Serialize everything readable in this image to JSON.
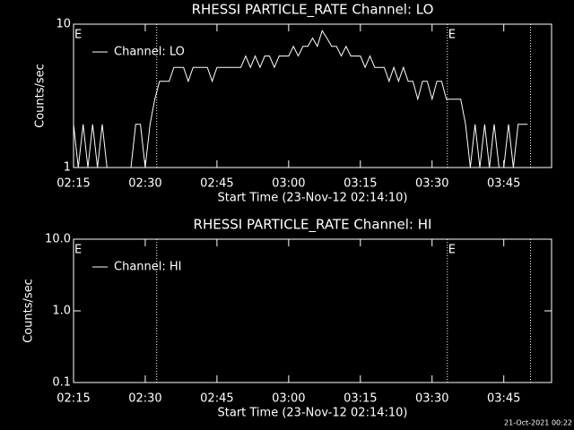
{
  "chart_data": [
    {
      "type": "line",
      "title": "RHESSI PARTICLE_RATE Channel: LO",
      "xlabel": "Start Time (23-Nov-12 02:14:10)",
      "ylabel": "Counts/sec",
      "xlim": [
        0,
        100
      ],
      "xticks": [
        {
          "value": 0,
          "label": "02:15"
        },
        {
          "value": 15,
          "label": "02:30"
        },
        {
          "value": 30,
          "label": "02:45"
        },
        {
          "value": 45,
          "label": "03:00"
        },
        {
          "value": 60,
          "label": "03:15"
        },
        {
          "value": 75,
          "label": "03:30"
        },
        {
          "value": 90,
          "label": "03:45"
        }
      ],
      "ylim": [
        1,
        10
      ],
      "yticks": [
        1,
        10
      ],
      "log_y": true,
      "grid": false,
      "legend": "upper left",
      "vlines": [
        17.4,
        78.2,
        95.6
      ],
      "annotations": [
        {
          "text": "E",
          "x": 0
        },
        {
          "text": "E",
          "x": 78.2
        }
      ],
      "series": [
        {
          "name": "Channel: LO",
          "color": "#ffffff",
          "x": [
            0,
            1,
            2,
            3,
            4,
            5,
            6,
            7,
            8,
            9,
            10,
            11,
            12,
            13,
            14,
            15,
            16,
            17,
            18,
            19,
            20,
            21,
            22,
            23,
            24,
            25,
            26,
            27,
            28,
            29,
            30,
            31,
            32,
            33,
            34,
            35,
            36,
            37,
            38,
            39,
            40,
            41,
            42,
            43,
            44,
            45,
            46,
            47,
            48,
            49,
            50,
            51,
            52,
            53,
            54,
            55,
            56,
            57,
            58,
            59,
            60,
            61,
            62,
            63,
            64,
            65,
            66,
            67,
            68,
            69,
            70,
            71,
            72,
            73,
            74,
            75,
            76,
            77,
            78,
            79,
            80,
            81,
            82,
            83,
            84,
            85,
            86,
            87,
            88,
            89,
            90,
            91,
            92,
            93,
            94,
            95
          ],
          "values": [
            2,
            1,
            2,
            1,
            2,
            1,
            2,
            1,
            1,
            1,
            1,
            1,
            1,
            2,
            2,
            1,
            2,
            3,
            4,
            4,
            4,
            5,
            5,
            5,
            4,
            5,
            5,
            5,
            5,
            4,
            5,
            5,
            5,
            5,
            5,
            5,
            6,
            5,
            6,
            5,
            6,
            6,
            5,
            6,
            6,
            6,
            7,
            6,
            7,
            7,
            8,
            7,
            9,
            8,
            7,
            7,
            6,
            7,
            6,
            6,
            6,
            5,
            6,
            5,
            5,
            5,
            4,
            5,
            4,
            5,
            4,
            4,
            3,
            4,
            4,
            3,
            4,
            4,
            3,
            3,
            3,
            3,
            2,
            1,
            2,
            1,
            2,
            1,
            2,
            1,
            1,
            2,
            1,
            2,
            2,
            2
          ]
        }
      ]
    },
    {
      "type": "line",
      "title": "RHESSI PARTICLE_RATE Channel: HI",
      "xlabel": "Start Time (23-Nov-12 02:14:10)",
      "ylabel": "Counts/sec",
      "xlim": [
        0,
        100
      ],
      "xticks": [
        {
          "value": 0,
          "label": "02:15"
        },
        {
          "value": 15,
          "label": "02:30"
        },
        {
          "value": 30,
          "label": "02:45"
        },
        {
          "value": 45,
          "label": "03:00"
        },
        {
          "value": 60,
          "label": "03:15"
        },
        {
          "value": 75,
          "label": "03:30"
        },
        {
          "value": 90,
          "label": "03:45"
        }
      ],
      "ylim": [
        0.1,
        10
      ],
      "yticks": [
        {
          "value": 0.1,
          "label": "0.1"
        },
        {
          "value": 1,
          "label": "1.0"
        },
        {
          "value": 10,
          "label": "10.0"
        }
      ],
      "log_y": true,
      "grid": false,
      "legend": "upper left",
      "vlines": [
        17.4,
        78.2,
        95.6
      ],
      "annotations": [
        {
          "text": "E",
          "x": 0
        },
        {
          "text": "E",
          "x": 78.2
        }
      ],
      "series": [
        {
          "name": "Channel: HI",
          "color": "#ffffff",
          "x": [],
          "values": []
        }
      ]
    }
  ],
  "footer": "21-Oct-2021 00:22"
}
